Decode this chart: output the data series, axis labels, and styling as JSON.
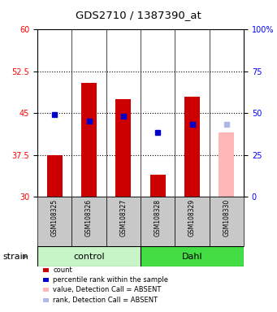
{
  "title": "GDS2710 / 1387390_at",
  "samples": [
    "GSM108325",
    "GSM108326",
    "GSM108327",
    "GSM108328",
    "GSM108329",
    "GSM108330"
  ],
  "bar_bottom": 30,
  "count_values": [
    37.5,
    50.5,
    47.5,
    34.0,
    48.0,
    null
  ],
  "percentile_values": [
    44.8,
    43.5,
    44.5,
    41.5,
    43.0,
    null
  ],
  "absent_value": [
    null,
    null,
    null,
    null,
    null,
    41.5
  ],
  "absent_rank": [
    null,
    null,
    null,
    null,
    null,
    43.0
  ],
  "ylim": [
    30,
    60
  ],
  "yticks_left": [
    30,
    37.5,
    45,
    52.5,
    60
  ],
  "yticks_right_vals": [
    30,
    37.5,
    45,
    52.5,
    60
  ],
  "yticks_right_labels": [
    "0",
    "25",
    "50",
    "75",
    "100%"
  ],
  "bar_color": "#cc0000",
  "percentile_color": "#0000cc",
  "absent_bar_color": "#ffb6b6",
  "absent_rank_color": "#b0b8e8",
  "control_bg_light": "#c8f5c8",
  "dahl_bg_dark": "#44dd44",
  "sample_bg": "#c8c8c8",
  "group_control_label": "control",
  "group_dahl_label": "Dahl",
  "legend_items": [
    {
      "color": "#cc0000",
      "label": "count"
    },
    {
      "color": "#0000cc",
      "label": "percentile rank within the sample"
    },
    {
      "color": "#ffb6b6",
      "label": "value, Detection Call = ABSENT"
    },
    {
      "color": "#b0b8e8",
      "label": "rank, Detection Call = ABSENT"
    }
  ]
}
